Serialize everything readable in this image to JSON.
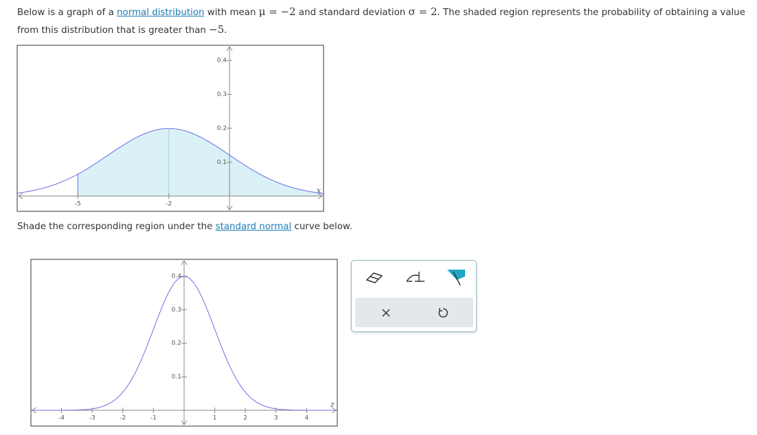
{
  "prompt": {
    "part1": "Below is a graph of a ",
    "link1": "normal distribution",
    "part2": " with mean ",
    "mu": "μ = −2",
    "part3": " and standard deviation ",
    "sigma": "σ = 2",
    "part4": ". The shaded region represents the probability of obtaining a value from this distribution that is greater than ",
    "threshold": "−5",
    "part5": "."
  },
  "graph1": {
    "mean": -2,
    "sd": 2,
    "shade_from": -5,
    "xlim": [
      -7,
      3.1
    ],
    "ylim": [
      -0.045,
      0.445
    ],
    "xticks": [
      -5,
      -2
    ],
    "yticks": [
      0.1,
      0.2,
      0.3,
      0.4
    ],
    "axis_label": "x"
  },
  "instruction": {
    "part1": "Shade the corresponding region under the ",
    "link": "standard normal",
    "part2": " curve below."
  },
  "graph2": {
    "mean": 0,
    "sd": 1,
    "xlim": [
      -5,
      5
    ],
    "ylim": [
      -0.047,
      0.45
    ],
    "xticks": [
      -4,
      -3,
      -2,
      -1,
      1,
      2,
      3,
      4
    ],
    "yticks": [
      0.1,
      0.2,
      0.3,
      0.4
    ],
    "axis_label": "z"
  }
}
